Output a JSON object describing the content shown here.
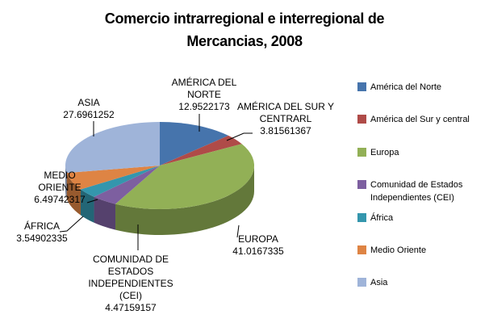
{
  "background_color": "#ffffff",
  "text_color": "#000000",
  "chart_data": {
    "type": "pie",
    "style": "3d",
    "title": "Comercio intrarregional e interregional de Mercancias, 2008",
    "title_lines": [
      "Comercio intrarregional e interregional de",
      "Mercancias, 2008"
    ],
    "legend_position": "right",
    "data_labels": "category name and value",
    "slices": [
      {
        "id": "america-del-norte",
        "legend_label": "América del Norte",
        "callout_lines": [
          "AMÉRICA DEL",
          "NORTE",
          "12.9522173"
        ],
        "value": 12.9522173,
        "color": "#4674AC"
      },
      {
        "id": "america-del-sur-y-central",
        "legend_label": "América del Sur y central",
        "callout_lines": [
          "AMÉRICA DEL SUR Y",
          "CENTRARL",
          "3.81561367"
        ],
        "value": 3.81561367,
        "color": "#AF4B48"
      },
      {
        "id": "europa",
        "legend_label": "Europa",
        "callout_lines": [
          "EUROPA",
          "41.0167335"
        ],
        "value": 41.0167335,
        "color": "#92B056"
      },
      {
        "id": "cei",
        "legend_label": "Comunidad de Estados Independientes (CEI)",
        "callout_lines": [
          "COMUNIDAD DE",
          "ESTADOS",
          "INDEPENDIENTES",
          "(CEI)",
          "4.47159157"
        ],
        "value": 4.47159157,
        "color": "#7D5FA0"
      },
      {
        "id": "africa",
        "legend_label": "África",
        "callout_lines": [
          "ÁFRICA",
          "3.54902335"
        ],
        "value": 3.54902335,
        "color": "#3496AD"
      },
      {
        "id": "medio-oriente",
        "legend_label": "Medio Oriente",
        "callout_lines": [
          "MEDIO",
          "ORIENTE",
          "6.49742317"
        ],
        "value": 6.49742317,
        "color": "#DE8444"
      },
      {
        "id": "asia",
        "legend_label": "Asia",
        "callout_lines": [
          "ASIA",
          "27.6961252"
        ],
        "value": 27.6961252,
        "color": "#9FB4D9"
      }
    ]
  }
}
